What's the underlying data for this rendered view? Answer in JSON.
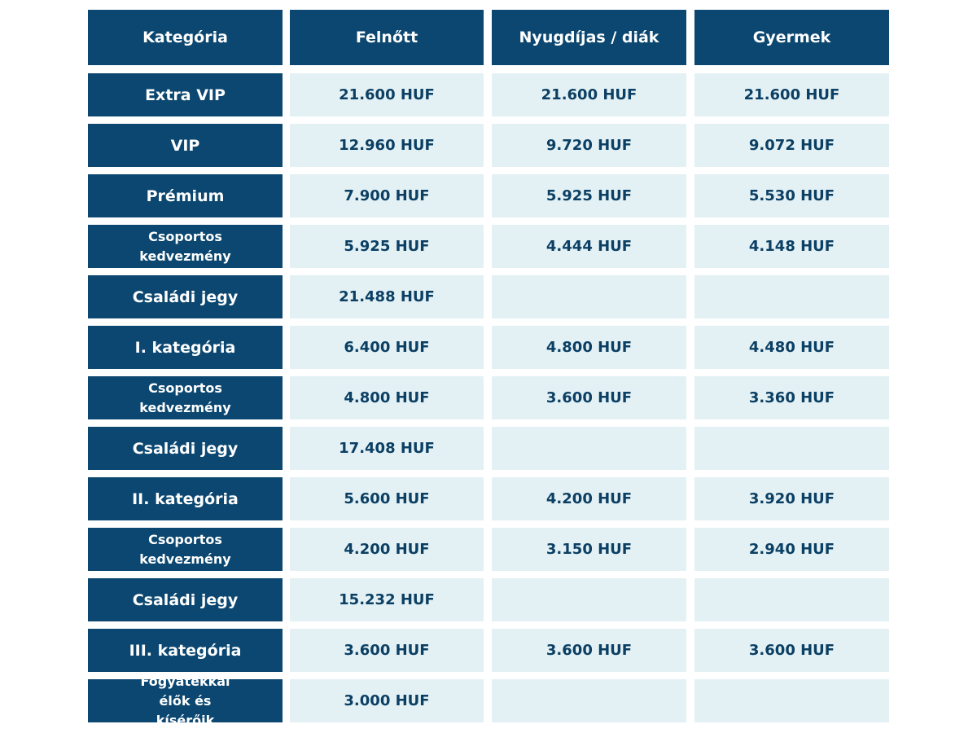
{
  "table": {
    "header": [
      "Kategória",
      "Felnőtt",
      "Nyugdíjas / diák",
      "Gyermek"
    ],
    "rows": [
      [
        "Extra VIP",
        "21.600 HUF",
        "21.600 HUF",
        "21.600 HUF"
      ],
      [
        "VIP",
        "12.960 HUF",
        "9.720 HUF",
        "9.072 HUF"
      ],
      [
        "Prémium",
        "7.900 HUF",
        "5.925 HUF",
        "5.530 HUF"
      ],
      [
        "Csoportos kedvezmény",
        "5.925 HUF",
        "4.444 HUF",
        "4.148 HUF"
      ],
      [
        "Családi jegy",
        "21.488 HUF"
      ],
      [
        "I. kategória",
        "6.400 HUF",
        "4.800 HUF",
        "4.480 HUF"
      ],
      [
        "Csoportos kedvezmény",
        "4.800 HUF",
        "3.600 HUF",
        "3.360 HUF"
      ],
      [
        "Családi jegy",
        "17.408 HUF"
      ],
      [
        "II. kategória",
        "5.600 HUF",
        "4.200 HUF",
        "3.920 HUF"
      ],
      [
        "Csoportos kedvezmény",
        "4.200 HUF",
        "3.150 HUF",
        "2.940 HUF"
      ],
      [
        "Családi jegy",
        "15.232 HUF"
      ],
      [
        "III. kategória",
        "3.600 HUF",
        "3.600 HUF",
        "3.600 HUF"
      ],
      [
        "Fogyatékkal élők és kísérőik",
        "3.000 HUF"
      ]
    ]
  }
}
